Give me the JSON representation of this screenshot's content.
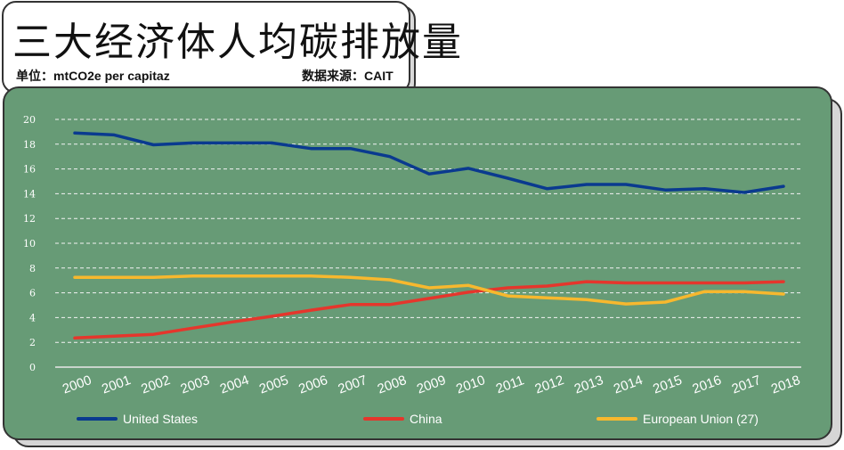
{
  "header": {
    "title": "三大经济体人均碳排放量",
    "unit_label": "单位：mtCO2e per capitaz",
    "source_label": "数据来源：CAIT"
  },
  "colors": {
    "background": "#679b76",
    "grid": "#f3f3f3",
    "united_states": "#0a3a8f",
    "china": "#e5362c",
    "european_union": "#f7b82e"
  },
  "chart_data": {
    "type": "line",
    "title": "三大经济体人均碳排放量",
    "xlabel": "",
    "ylabel": "",
    "ylim": [
      0,
      20
    ],
    "yticks": [
      "0",
      "2",
      "4",
      "6",
      "8",
      "10",
      "12",
      "14",
      "16",
      "18",
      "20"
    ],
    "x": [
      "2000",
      "2001",
      "2002",
      "2003",
      "2004",
      "2005",
      "2006",
      "2007",
      "2008",
      "2009",
      "2010",
      "2011",
      "2012",
      "2013",
      "2014",
      "2015",
      "2016",
      "2017",
      "2018"
    ],
    "grid": true,
    "legend_position": "bottom",
    "series": [
      {
        "name": "United States",
        "key": "united_states",
        "values": [
          18.9,
          18.75,
          17.95,
          18.1,
          18.1,
          18.1,
          17.65,
          17.65,
          17.0,
          15.6,
          16.05,
          15.25,
          14.4,
          14.75,
          14.75,
          14.3,
          14.4,
          14.1,
          14.6
        ]
      },
      {
        "name": "China",
        "key": "china",
        "values": [
          2.35,
          2.5,
          2.65,
          3.15,
          3.65,
          4.1,
          4.6,
          5.05,
          5.05,
          5.55,
          6.05,
          6.4,
          6.55,
          6.9,
          6.8,
          6.8,
          6.8,
          6.8,
          6.9
        ]
      },
      {
        "name": "European Union (27)",
        "key": "european_union",
        "values": [
          7.25,
          7.25,
          7.25,
          7.35,
          7.35,
          7.35,
          7.35,
          7.25,
          7.05,
          6.4,
          6.6,
          5.75,
          5.6,
          5.45,
          5.1,
          5.25,
          6.1,
          6.1,
          5.9
        ]
      }
    ]
  }
}
